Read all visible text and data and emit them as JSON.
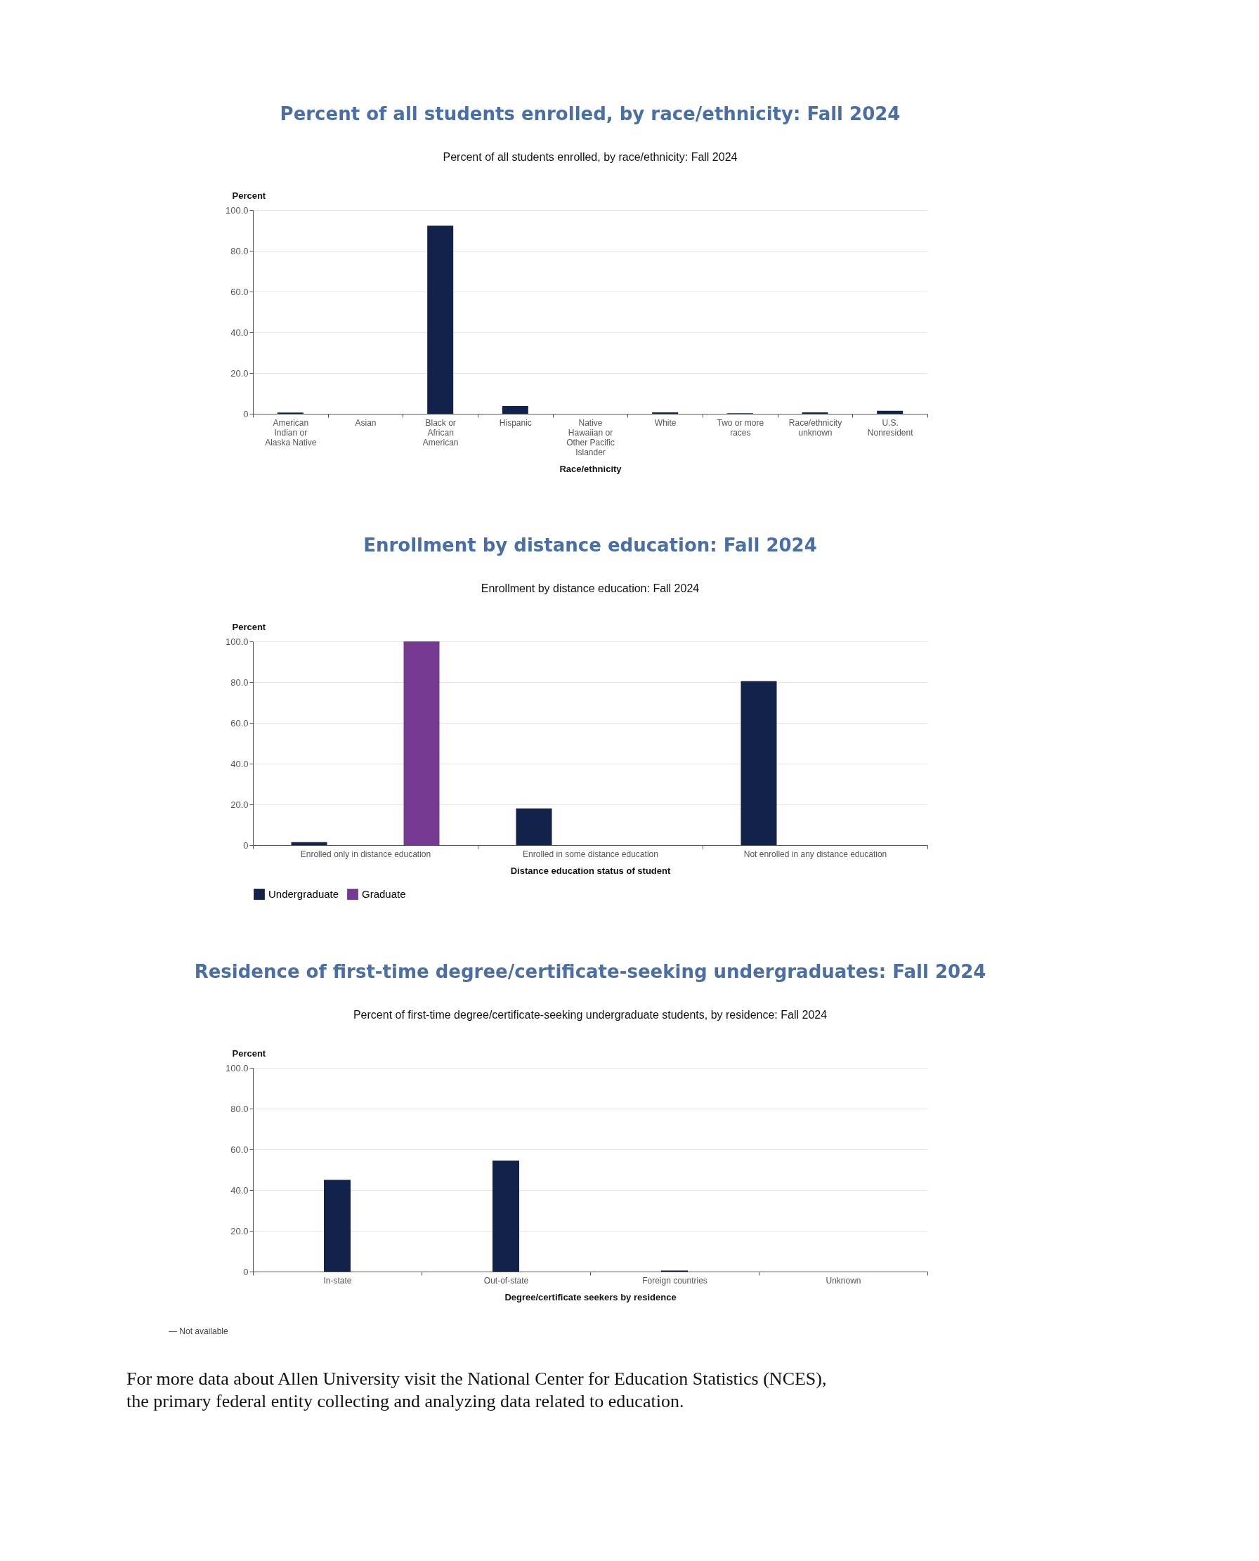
{
  "chart_data": [
    {
      "type": "bar",
      "title": "Percent of all students enrolled, by race/ethnicity: Fall 2024",
      "subtitle": "Percent of all students enrolled, by race/ethnicity: Fall 2024",
      "xlabel": "Race/ethnicity",
      "ylabel": "Percent",
      "categories": [
        "American Indian or Alaska Native",
        "Asian",
        "Black or African American",
        "Hispanic",
        "Native Hawaiian or Other Pacific Islander",
        "White",
        "Two or more races",
        "Race/ethnicity unknown",
        "U.S. Nonresident"
      ],
      "series": [
        {
          "color": "#12224a",
          "values": [
            0.6,
            0,
            92.3,
            3.8,
            0,
            0.7,
            0.3,
            0.7,
            1.5
          ]
        }
      ],
      "ylim": [
        0,
        100
      ],
      "yticks": [
        {
          "value": 0,
          "label": "0"
        },
        {
          "value": 20,
          "label": "20.0"
        },
        {
          "value": 40,
          "label": "40.0"
        },
        {
          "value": 60,
          "label": "60.0"
        },
        {
          "value": 80,
          "label": "80.0"
        },
        {
          "value": 100,
          "label": "100.0"
        }
      ],
      "grid": "y",
      "legend": false
    },
    {
      "type": "bar",
      "title": "Enrollment by distance education: Fall 2024",
      "subtitle": "Enrollment by distance education: Fall 2024",
      "xlabel": "Distance education status of student",
      "ylabel": "Percent",
      "categories": [
        "Enrolled only in distance education",
        "Enrolled in some distance education",
        "Not enrolled in any distance education"
      ],
      "series": [
        {
          "name": "Undergraduate",
          "color": "#12224a",
          "values": [
            1.5,
            18,
            80.5
          ]
        },
        {
          "name": "Graduate",
          "color": "#763a92",
          "values": [
            100,
            0,
            0
          ]
        }
      ],
      "ylim": [
        0,
        100
      ],
      "yticks": [
        {
          "value": 0,
          "label": "0"
        },
        {
          "value": 20,
          "label": "20.0"
        },
        {
          "value": 40,
          "label": "40.0"
        },
        {
          "value": 60,
          "label": "60.0"
        },
        {
          "value": 80,
          "label": "80.0"
        },
        {
          "value": 100,
          "label": "100.0"
        }
      ],
      "grid": "y",
      "legend": "bottom"
    },
    {
      "type": "bar",
      "title": "Residence of first-time degree/certificate-seeking undergraduates: Fall 2024",
      "subtitle": "Percent of first-time degree/certificate-seeking undergraduate students, by residence: Fall 2024",
      "xlabel": "Degree/certificate seekers by residence",
      "ylabel": "Percent",
      "categories": [
        "In-state",
        "Out-of-state",
        "Foreign countries",
        "Unknown"
      ],
      "series": [
        {
          "color": "#12224a",
          "values": [
            45,
            54.5,
            0.5,
            0
          ]
        }
      ],
      "ylim": [
        0,
        100
      ],
      "yticks": [
        {
          "value": 0,
          "label": "0"
        },
        {
          "value": 20,
          "label": "20.0"
        },
        {
          "value": 40,
          "label": "40.0"
        },
        {
          "value": 60,
          "label": "60.0"
        },
        {
          "value": 80,
          "label": "80.0"
        },
        {
          "value": 100,
          "label": "100.0"
        }
      ],
      "grid": "y",
      "legend": false,
      "annotations": [
        "— Not available",
        "For more data about Allen University visit the National Center for Education Statistics (NCES), the primary federal entity collecting and analyzing data related to education."
      ]
    }
  ]
}
